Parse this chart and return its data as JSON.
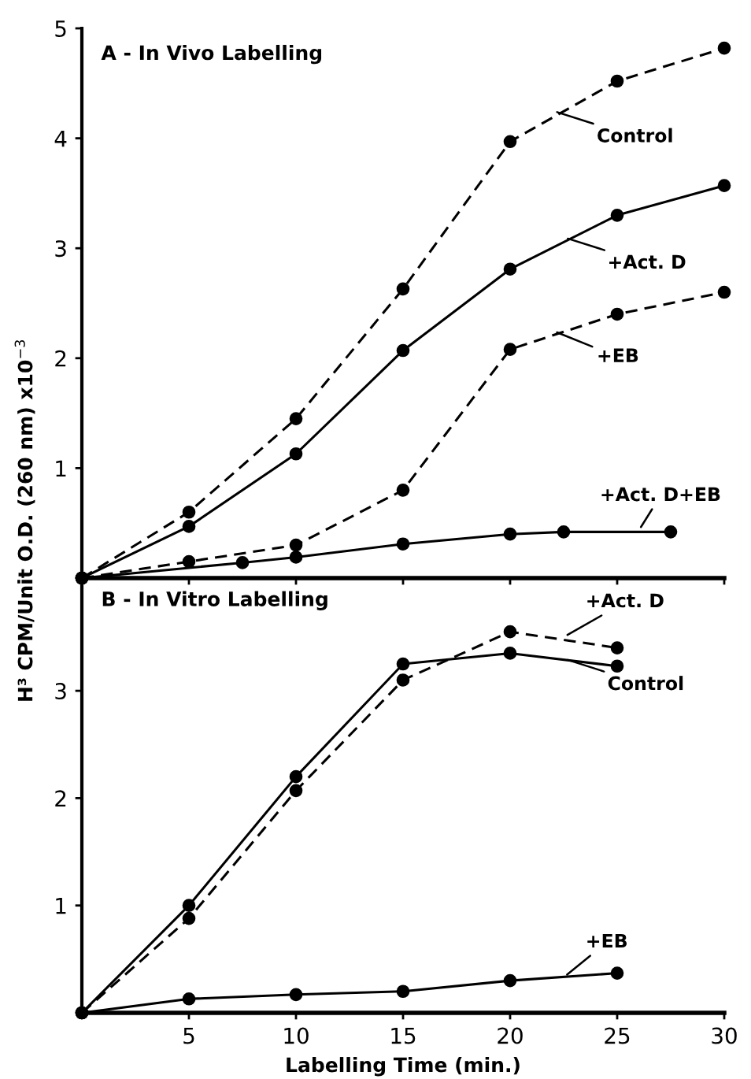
{
  "chart_data": [
    {
      "type": "line",
      "title": "A - In Vivo Labelling",
      "ylabel": "H³ CPM/Unit O.D. (260 nm) x10$^{−3}$",
      "xlim": [
        0,
        30
      ],
      "ylim": [
        0,
        5
      ],
      "xticks": [
        5,
        10,
        15,
        20,
        25,
        30
      ],
      "yticks": [
        1,
        2,
        3,
        4,
        5
      ],
      "tick_labels": "y",
      "marker": "circle",
      "grid": false,
      "legend": false,
      "series": [
        {
          "color": "#000000",
          "line_style": "dashed",
          "x": [
            0,
            5,
            10,
            15,
            20,
            25,
            30
          ],
          "values": [
            0,
            0.6,
            1.45,
            2.63,
            3.97,
            4.52,
            4.82
          ]
        },
        {
          "color": "#000000",
          "line_style": "solid",
          "x": [
            0,
            5,
            10,
            15,
            20,
            25,
            30
          ],
          "values": [
            0,
            0.47,
            1.13,
            2.07,
            2.81,
            3.3,
            3.57
          ]
        },
        {
          "color": "#000000",
          "line_style": "dashed",
          "x": [
            0,
            5,
            10,
            15,
            20,
            25,
            30
          ],
          "values": [
            0,
            0.15,
            0.3,
            0.8,
            2.08,
            2.4,
            2.6
          ]
        },
        {
          "color": "#000000",
          "line_style": "solid",
          "x": [
            0,
            7.5,
            10,
            15,
            20,
            22.5,
            27.5
          ],
          "values": [
            0,
            0.14,
            0.19,
            0.31,
            0.4,
            0.42,
            0.42
          ]
        }
      ],
      "annotations": [
        {
          "text": "Control",
          "x": 22,
          "y": 4.25
        },
        {
          "text": "+Act. D",
          "x": 22.5,
          "y": 3.1
        },
        {
          "text": "+EB",
          "x": 22,
          "y": 2.25
        },
        {
          "text": "+Act. D+EB",
          "x": 26,
          "y": 0.43
        }
      ]
    },
    {
      "type": "line",
      "title": "B - In Vitro Labelling",
      "xlabel": "Labelling Time (min.)",
      "xlim": [
        0,
        30
      ],
      "ylim": [
        0,
        4.05
      ],
      "xticks": [
        5,
        10,
        15,
        20,
        25,
        30
      ],
      "yticks": [
        1,
        2,
        3
      ],
      "marker": "circle",
      "grid": false,
      "legend": false,
      "series": [
        {
          "color": "#000000",
          "line_style": "solid",
          "x": [
            0,
            5,
            10,
            15,
            20,
            25
          ],
          "values": [
            0,
            1.0,
            2.2,
            3.25,
            3.35,
            3.23
          ]
        },
        {
          "color": "#000000",
          "line_style": "dashed",
          "x": [
            0,
            5,
            10,
            15,
            20,
            25
          ],
          "values": [
            0,
            0.88,
            2.07,
            3.1,
            3.55,
            3.4
          ]
        },
        {
          "color": "#000000",
          "line_style": "solid",
          "x": [
            0,
            5,
            10,
            15,
            20,
            25
          ],
          "values": [
            0,
            0.13,
            0.17,
            0.2,
            0.3,
            0.37
          ]
        }
      ],
      "annotations": [
        {
          "text": "+Act. D",
          "x": 22.5,
          "y": 3.5
        },
        {
          "text": "Control",
          "x": 22.5,
          "y": 3.3
        },
        {
          "text": "+EB",
          "x": 22.5,
          "y": 0.33
        }
      ]
    }
  ]
}
